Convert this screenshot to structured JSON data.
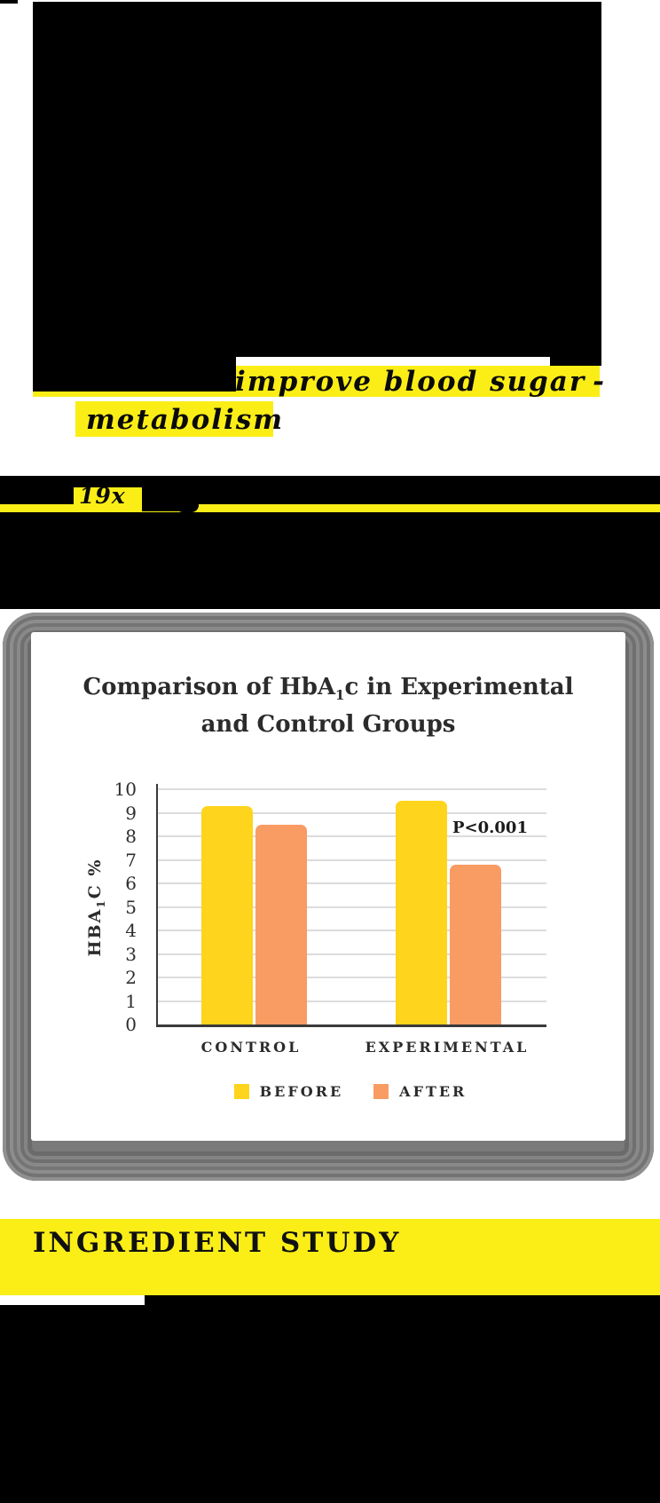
{
  "colors": {
    "highlight_yellow": "#FBEE17",
    "banner_yellow": "#FBEE17",
    "bar_yellow": "#FFD41C",
    "bar_orange": "#F89C64",
    "redaction_black": "#000000",
    "card_frame_gray": "#7a7a7a"
  },
  "hero": {
    "line1": "improve blood sugar",
    "line1_suffix": "-",
    "line2": "metabolism",
    "stat": "19x"
  },
  "card": {
    "chart_data": {
      "type": "bar",
      "title": "Comparison of HbA₁c in Experimental and Control Groups",
      "title_parts": {
        "pre": "Comparison of HbA",
        "sub": "1",
        "post": "c in Experimental",
        "line2": "and Control Groups"
      },
      "categories": [
        "CONTROL",
        "EXPERIMENTAL"
      ],
      "series": [
        {
          "name": "BEFORE",
          "color": "#FFD41C",
          "values": [
            9.3,
            9.5
          ]
        },
        {
          "name": "AFTER",
          "color": "#F89C64",
          "values": [
            8.5,
            6.8
          ]
        }
      ],
      "ylabel": "HBA₁C %",
      "ylabel_parts": {
        "pre": "HBA",
        "sub": "1",
        "post": "C %"
      },
      "ylim": [
        0,
        10
      ],
      "yticks": [
        0,
        1,
        2,
        3,
        4,
        5,
        6,
        7,
        8,
        9,
        10
      ],
      "grid": true,
      "annotation": "P<0.001",
      "legend_position": "bottom"
    }
  },
  "banner": {
    "title": "INGREDIENT STUDY"
  }
}
